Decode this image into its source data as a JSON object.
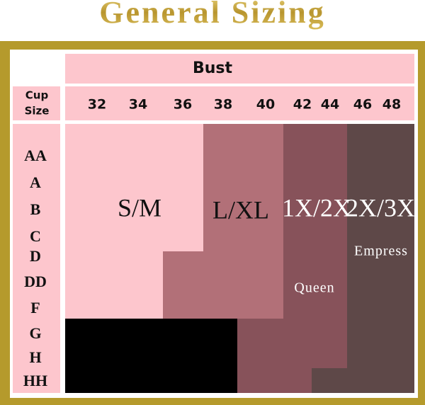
{
  "title": "General Sizing",
  "header": {
    "bust": "Bust",
    "cup_size": [
      "Cup",
      "Size"
    ]
  },
  "bust_sizes": [
    32,
    34,
    36,
    38,
    40,
    42,
    44,
    46,
    48
  ],
  "cup_sizes": [
    "AA",
    "A",
    "B",
    "C",
    "D",
    "DD",
    "F",
    "G",
    "H",
    "HH"
  ],
  "sizes": [
    {
      "label": "S/M"
    },
    {
      "label": "L/XL"
    },
    {
      "label": "1X/2X",
      "sub": "Queen"
    },
    {
      "label": "2X/3X",
      "sub": "Empress"
    }
  ]
}
